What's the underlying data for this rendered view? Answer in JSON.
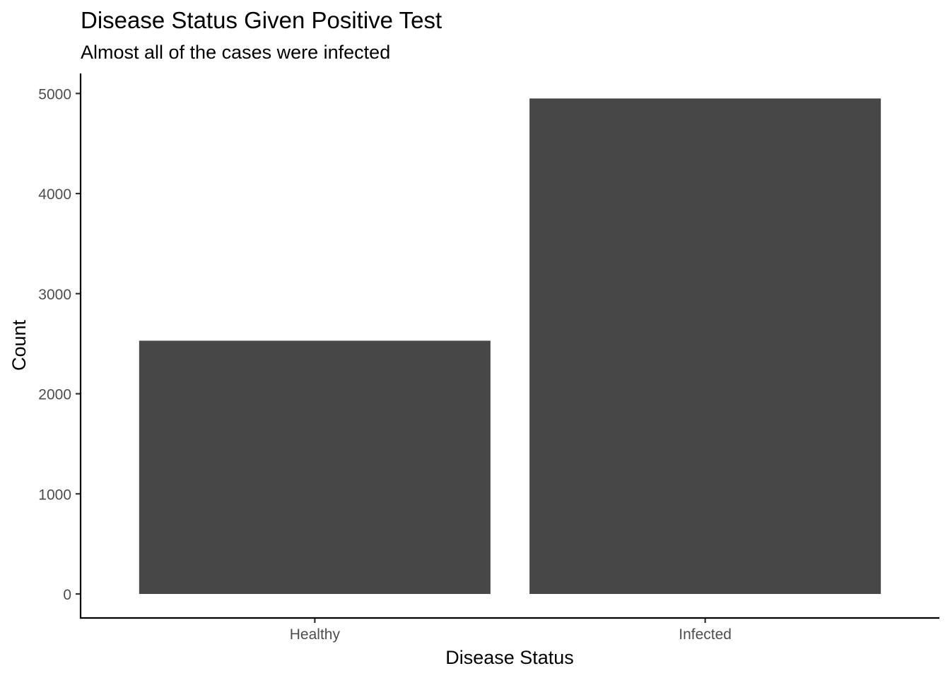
{
  "chart_data": {
    "type": "bar",
    "title": "Disease Status Given Positive Test",
    "subtitle": "Almost all of the cases were infected",
    "xlabel": "Disease Status",
    "ylabel": "Count",
    "categories": [
      "Healthy",
      "Infected"
    ],
    "values": [
      2530,
      4950
    ],
    "ylim": [
      -240,
      5200
    ],
    "yticks": [
      0,
      1000,
      2000,
      3000,
      4000,
      5000
    ],
    "bar_color": "#474747",
    "grid": false,
    "legend": "none"
  }
}
